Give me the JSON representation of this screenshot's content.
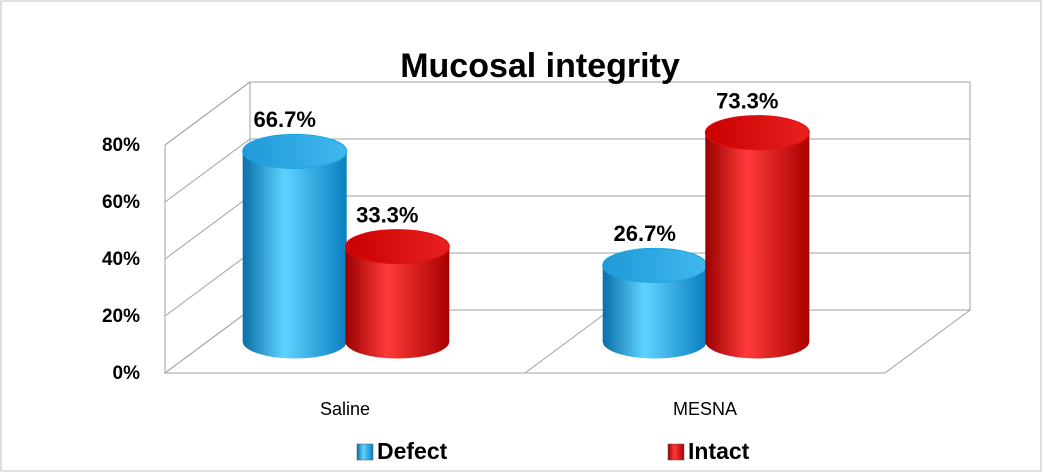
{
  "chart_data": {
    "type": "bar3d",
    "title": "Mucosal integrity",
    "categories": [
      "Saline",
      "MESNA"
    ],
    "series": [
      {
        "name": "Defect",
        "color": "#1aa3e0",
        "values": [
          66.7,
          26.7
        ],
        "value_labels": [
          "66.7%",
          "26.7%"
        ]
      },
      {
        "name": "Intact",
        "color": "#e01010",
        "values": [
          33.3,
          73.3
        ],
        "value_labels": [
          "33.3%",
          "73.3%"
        ]
      }
    ],
    "ylim": [
      0,
      80
    ],
    "yticks": [
      {
        "value": 0,
        "label": "0%"
      },
      {
        "value": 20,
        "label": "20%"
      },
      {
        "value": 40,
        "label": "40%"
      },
      {
        "value": 60,
        "label": "60%"
      },
      {
        "value": 80,
        "label": "80%"
      }
    ],
    "grid": true,
    "legend": "bottom"
  }
}
